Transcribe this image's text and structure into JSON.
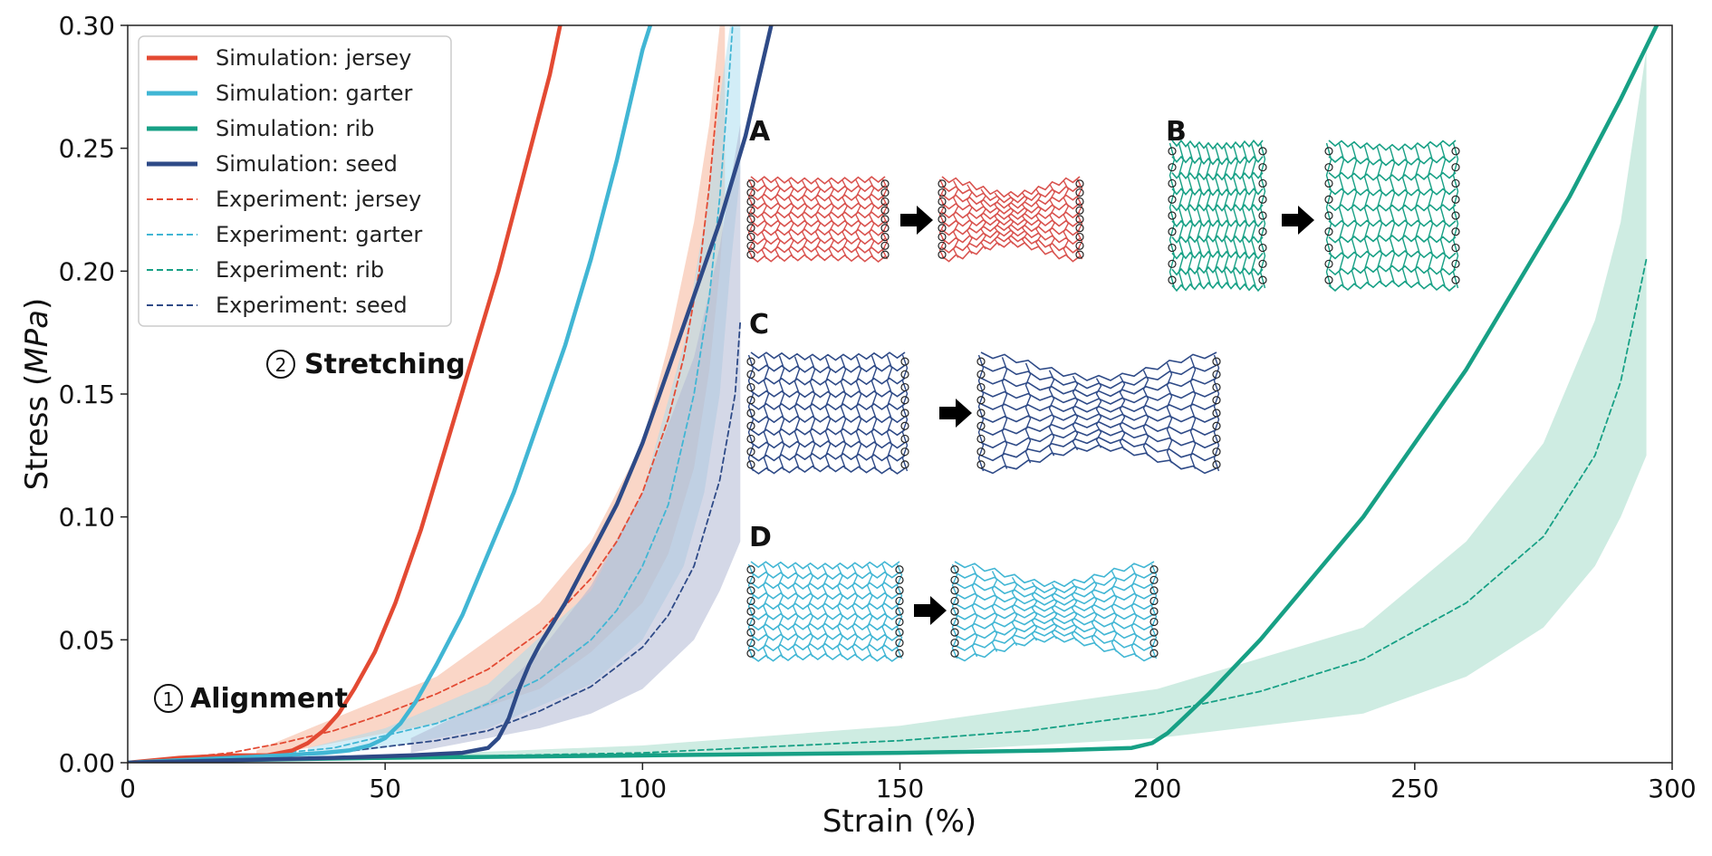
{
  "chart_data": {
    "type": "line",
    "title": "",
    "xlabel": "Strain (%)",
    "ylabel_parts": [
      "Stress (",
      "MPa",
      ")"
    ],
    "xlim": [
      0,
      300
    ],
    "ylim": [
      0,
      0.3
    ],
    "xticks": [
      0,
      50,
      100,
      150,
      200,
      250,
      300
    ],
    "xtick_labels": [
      "0",
      "50",
      "100",
      "150",
      "200",
      "250",
      "300"
    ],
    "yticks": [
      0,
      0.05,
      0.1,
      0.15,
      0.2,
      0.25,
      0.3
    ],
    "ytick_labels": [
      "0.00",
      "0.05",
      "0.10",
      "0.15",
      "0.20",
      "0.25",
      "0.30"
    ],
    "grid": false,
    "legend_position": "top-left",
    "series": [
      {
        "name": "Simulation: jersey",
        "style": "solid",
        "color": "#e34a33",
        "x": [
          0,
          10,
          20,
          27,
          32,
          35,
          38,
          41,
          44,
          48,
          52,
          57,
          62,
          67,
          72,
          77,
          82,
          84
        ],
        "y": [
          0,
          0.002,
          0.003,
          0.003,
          0.005,
          0.008,
          0.013,
          0.02,
          0.03,
          0.045,
          0.065,
          0.095,
          0.13,
          0.165,
          0.2,
          0.24,
          0.28,
          0.3
        ]
      },
      {
        "name": "Simulation: garter",
        "style": "solid",
        "color": "#41b6d4",
        "x": [
          0,
          10,
          20,
          30,
          38,
          43,
          47,
          50,
          53,
          56,
          60,
          65,
          70,
          75,
          80,
          85,
          90,
          95,
          100,
          101.5
        ],
        "y": [
          0,
          0.001,
          0.002,
          0.003,
          0.004,
          0.005,
          0.007,
          0.01,
          0.016,
          0.025,
          0.04,
          0.06,
          0.085,
          0.11,
          0.14,
          0.17,
          0.205,
          0.245,
          0.29,
          0.3
        ]
      },
      {
        "name": "Simulation: rib",
        "style": "solid",
        "color": "#17a085",
        "x": [
          0,
          20,
          50,
          100,
          150,
          180,
          195,
          199,
          202,
          205,
          210,
          220,
          230,
          240,
          250,
          260,
          270,
          280,
          290,
          297
        ],
        "y": [
          0,
          0.001,
          0.002,
          0.003,
          0.004,
          0.005,
          0.006,
          0.008,
          0.012,
          0.018,
          0.028,
          0.05,
          0.075,
          0.1,
          0.13,
          0.16,
          0.195,
          0.23,
          0.27,
          0.3
        ]
      },
      {
        "name": "Simulation: seed",
        "style": "solid",
        "color": "#2e4a87",
        "x": [
          0,
          20,
          40,
          55,
          65,
          70,
          72,
          74,
          76,
          78,
          80,
          85,
          90,
          95,
          100,
          105,
          110,
          115,
          120,
          125
        ],
        "y": [
          0,
          0.001,
          0.002,
          0.003,
          0.004,
          0.006,
          0.01,
          0.018,
          0.03,
          0.04,
          0.048,
          0.065,
          0.085,
          0.105,
          0.13,
          0.16,
          0.19,
          0.22,
          0.255,
          0.3
        ]
      },
      {
        "name": "Experiment: jersey",
        "style": "dashed",
        "color": "#e34a33",
        "x": [
          0,
          10,
          20,
          30,
          40,
          50,
          60,
          70,
          80,
          90,
          95,
          100,
          105,
          108,
          111,
          113,
          115
        ],
        "y": [
          0,
          0.002,
          0.004,
          0.008,
          0.013,
          0.02,
          0.028,
          0.038,
          0.053,
          0.075,
          0.09,
          0.11,
          0.14,
          0.165,
          0.2,
          0.235,
          0.28
        ]
      },
      {
        "name": "Experiment: garter",
        "style": "dashed",
        "color": "#41b6d4",
        "x": [
          0,
          20,
          40,
          60,
          70,
          80,
          90,
          95,
          100,
          105,
          110,
          113,
          115,
          116.5,
          117.5
        ],
        "y": [
          0,
          0.002,
          0.006,
          0.016,
          0.024,
          0.034,
          0.05,
          0.062,
          0.08,
          0.105,
          0.15,
          0.19,
          0.23,
          0.27,
          0.3
        ]
      },
      {
        "name": "Experiment: rib",
        "style": "dashed",
        "color": "#17a085",
        "x": [
          0,
          50,
          100,
          150,
          175,
          200,
          220,
          240,
          260,
          275,
          285,
          290,
          295
        ],
        "y": [
          0,
          0.002,
          0.004,
          0.009,
          0.013,
          0.02,
          0.029,
          0.042,
          0.065,
          0.092,
          0.125,
          0.155,
          0.205
        ]
      },
      {
        "name": "Experiment: seed",
        "style": "dashed",
        "color": "#2e4a87",
        "x": [
          0,
          20,
          40,
          60,
          70,
          80,
          90,
          100,
          105,
          110,
          115,
          118,
          119
        ],
        "y": [
          0,
          0.002,
          0.004,
          0.009,
          0.013,
          0.021,
          0.031,
          0.047,
          0.06,
          0.08,
          0.115,
          0.15,
          0.18
        ]
      }
    ],
    "bands": [
      {
        "series": "Experiment: jersey",
        "color": "#f4a582",
        "opacity": 0.45,
        "x": [
          25,
          40,
          60,
          80,
          90,
          100,
          105,
          110,
          113,
          115,
          116
        ],
        "lower": [
          0.002,
          0.008,
          0.016,
          0.03,
          0.045,
          0.065,
          0.085,
          0.12,
          0.16,
          0.2,
          0.23
        ],
        "upper": [
          0.005,
          0.018,
          0.035,
          0.065,
          0.09,
          0.13,
          0.17,
          0.22,
          0.26,
          0.3,
          0.3
        ]
      },
      {
        "series": "Experiment: garter",
        "color": "#a6dcef",
        "opacity": 0.5,
        "x": [
          35,
          50,
          70,
          90,
          100,
          108,
          112,
          115,
          117,
          119
        ],
        "lower": [
          0.002,
          0.006,
          0.014,
          0.032,
          0.05,
          0.08,
          0.11,
          0.15,
          0.2,
          0.24
        ],
        "upper": [
          0.006,
          0.014,
          0.032,
          0.07,
          0.11,
          0.17,
          0.22,
          0.27,
          0.3,
          0.3
        ]
      },
      {
        "series": "Experiment: rib",
        "color": "#9ed9c6",
        "opacity": 0.5,
        "x": [
          40,
          100,
          150,
          200,
          240,
          260,
          275,
          285,
          290,
          295
        ],
        "lower": [
          0.001,
          0.002,
          0.004,
          0.01,
          0.02,
          0.035,
          0.055,
          0.08,
          0.1,
          0.125
        ],
        "upper": [
          0.002,
          0.007,
          0.015,
          0.03,
          0.055,
          0.09,
          0.13,
          0.18,
          0.22,
          0.29
        ]
      },
      {
        "series": "Experiment: seed",
        "color": "#b0b8d4",
        "opacity": 0.55,
        "x": [
          55,
          70,
          80,
          90,
          100,
          110,
          115,
          119
        ],
        "lower": [
          0.004,
          0.01,
          0.014,
          0.02,
          0.03,
          0.05,
          0.07,
          0.09
        ],
        "upper": [
          0.01,
          0.025,
          0.045,
          0.072,
          0.11,
          0.165,
          0.21,
          0.26
        ]
      }
    ],
    "annotations": [
      {
        "marker": "1",
        "text": "Alignment",
        "x": 5,
        "y": 0.027
      },
      {
        "marker": "2",
        "text": "Stretching",
        "x": 27,
        "y": 0.162
      }
    ],
    "inset_panels": [
      {
        "label": "A",
        "pattern": "jersey",
        "color": "#d9534f"
      },
      {
        "label": "B",
        "pattern": "rib",
        "color": "#17a085"
      },
      {
        "label": "C",
        "pattern": "seed",
        "color": "#2e4a87"
      },
      {
        "label": "D",
        "pattern": "garter",
        "color": "#41b6d4"
      }
    ]
  }
}
